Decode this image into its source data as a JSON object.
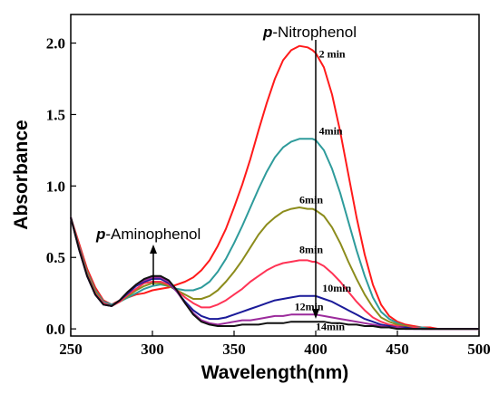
{
  "chart_data": {
    "type": "line",
    "xlabel": "Wavelength(nm)",
    "ylabel": "Absorbance",
    "xlim": [
      250,
      500
    ],
    "ylim": [
      -0.05,
      2.2
    ],
    "xticks": [
      "250",
      "300",
      "350",
      "400",
      "450",
      "500"
    ],
    "yticks": [
      "0.0",
      "0.5",
      "1.0",
      "1.5",
      "2.0"
    ],
    "grid": false,
    "annotations": {
      "nitro_prefix": "p",
      "nitro_rest": "-Nitrophenol",
      "amino_prefix": "p",
      "amino_rest": "-Aminophenol"
    },
    "series": [
      {
        "name": "2 min",
        "color": "#ff1a1a",
        "x": [
          250,
          255,
          260,
          265,
          270,
          275,
          280,
          285,
          290,
          295,
          300,
          305,
          310,
          315,
          320,
          325,
          330,
          335,
          340,
          345,
          350,
          355,
          360,
          365,
          370,
          375,
          380,
          385,
          390,
          395,
          398,
          400,
          405,
          410,
          415,
          420,
          425,
          430,
          435,
          440,
          445,
          450,
          455,
          460,
          465,
          470,
          475,
          480,
          490,
          500
        ],
        "y": [
          0.78,
          0.6,
          0.42,
          0.29,
          0.2,
          0.17,
          0.2,
          0.22,
          0.24,
          0.25,
          0.27,
          0.28,
          0.29,
          0.31,
          0.33,
          0.36,
          0.41,
          0.48,
          0.58,
          0.7,
          0.85,
          1.01,
          1.19,
          1.39,
          1.58,
          1.75,
          1.88,
          1.95,
          1.98,
          1.97,
          1.95,
          1.93,
          1.83,
          1.64,
          1.38,
          1.08,
          0.78,
          0.52,
          0.31,
          0.17,
          0.09,
          0.05,
          0.03,
          0.02,
          0.01,
          0.01,
          0.0,
          0.0,
          0.0,
          0.0
        ]
      },
      {
        "name": "4min",
        "color": "#2e9b9b",
        "x": [
          250,
          255,
          260,
          265,
          270,
          275,
          280,
          285,
          290,
          295,
          300,
          305,
          310,
          315,
          320,
          325,
          330,
          335,
          340,
          345,
          350,
          355,
          360,
          365,
          370,
          375,
          380,
          385,
          390,
          395,
          398,
          400,
          405,
          410,
          415,
          420,
          425,
          430,
          435,
          440,
          445,
          450,
          455,
          460,
          465,
          470,
          475,
          480,
          490,
          500
        ],
        "y": [
          0.78,
          0.58,
          0.4,
          0.27,
          0.19,
          0.17,
          0.19,
          0.22,
          0.25,
          0.28,
          0.3,
          0.31,
          0.3,
          0.28,
          0.27,
          0.27,
          0.29,
          0.33,
          0.4,
          0.49,
          0.6,
          0.72,
          0.85,
          0.98,
          1.1,
          1.2,
          1.27,
          1.31,
          1.33,
          1.33,
          1.33,
          1.32,
          1.25,
          1.12,
          0.95,
          0.75,
          0.55,
          0.37,
          0.22,
          0.12,
          0.07,
          0.04,
          0.02,
          0.01,
          0.01,
          0.0,
          0.0,
          0.0,
          0.0,
          0.0
        ]
      },
      {
        "name": "6min",
        "color": "#8c8c1c",
        "x": [
          250,
          255,
          260,
          265,
          270,
          275,
          280,
          285,
          290,
          295,
          300,
          305,
          310,
          315,
          320,
          325,
          330,
          335,
          340,
          345,
          350,
          355,
          360,
          365,
          370,
          375,
          380,
          385,
          390,
          395,
          398,
          400,
          405,
          410,
          415,
          420,
          425,
          430,
          435,
          440,
          445,
          450,
          455,
          460,
          465,
          470,
          475,
          480,
          490,
          500
        ],
        "y": [
          0.78,
          0.57,
          0.39,
          0.26,
          0.18,
          0.16,
          0.19,
          0.23,
          0.27,
          0.3,
          0.32,
          0.32,
          0.3,
          0.27,
          0.24,
          0.21,
          0.21,
          0.23,
          0.27,
          0.33,
          0.4,
          0.48,
          0.57,
          0.66,
          0.73,
          0.78,
          0.82,
          0.84,
          0.85,
          0.84,
          0.84,
          0.83,
          0.79,
          0.71,
          0.6,
          0.47,
          0.35,
          0.24,
          0.15,
          0.08,
          0.05,
          0.03,
          0.02,
          0.01,
          0.0,
          0.0,
          0.0,
          0.0,
          0.0,
          0.0
        ]
      },
      {
        "name": "8min",
        "color": "#ff3355",
        "x": [
          250,
          255,
          260,
          265,
          270,
          275,
          280,
          285,
          290,
          295,
          300,
          305,
          310,
          315,
          320,
          325,
          330,
          335,
          340,
          345,
          350,
          355,
          360,
          365,
          370,
          375,
          380,
          385,
          390,
          395,
          398,
          400,
          405,
          410,
          415,
          420,
          425,
          430,
          435,
          440,
          445,
          450,
          455,
          460,
          465,
          470,
          475,
          480,
          490,
          500
        ],
        "y": [
          0.78,
          0.57,
          0.38,
          0.25,
          0.18,
          0.16,
          0.19,
          0.24,
          0.28,
          0.32,
          0.33,
          0.33,
          0.31,
          0.27,
          0.22,
          0.18,
          0.15,
          0.15,
          0.17,
          0.2,
          0.24,
          0.28,
          0.33,
          0.37,
          0.41,
          0.44,
          0.46,
          0.47,
          0.48,
          0.48,
          0.47,
          0.47,
          0.44,
          0.39,
          0.33,
          0.26,
          0.19,
          0.13,
          0.08,
          0.05,
          0.03,
          0.02,
          0.01,
          0.01,
          0.0,
          0.0,
          0.0,
          0.0,
          0.0,
          0.0
        ]
      },
      {
        "name": "10min",
        "color": "#1a1a99",
        "x": [
          250,
          255,
          260,
          265,
          270,
          275,
          280,
          285,
          290,
          295,
          300,
          305,
          310,
          315,
          320,
          325,
          330,
          335,
          340,
          345,
          350,
          355,
          360,
          365,
          370,
          375,
          380,
          385,
          390,
          395,
          398,
          400,
          405,
          410,
          415,
          420,
          425,
          430,
          435,
          440,
          445,
          450,
          455,
          460,
          465,
          470,
          475,
          480,
          490,
          500
        ],
        "y": [
          0.78,
          0.56,
          0.37,
          0.24,
          0.17,
          0.16,
          0.2,
          0.25,
          0.3,
          0.33,
          0.35,
          0.35,
          0.32,
          0.26,
          0.19,
          0.13,
          0.09,
          0.07,
          0.07,
          0.08,
          0.1,
          0.12,
          0.14,
          0.16,
          0.18,
          0.2,
          0.21,
          0.22,
          0.23,
          0.23,
          0.23,
          0.23,
          0.21,
          0.19,
          0.16,
          0.13,
          0.1,
          0.07,
          0.05,
          0.03,
          0.02,
          0.01,
          0.01,
          0.0,
          0.0,
          0.0,
          0.0,
          0.0,
          0.0,
          0.0
        ]
      },
      {
        "name": "12min",
        "color": "#9b2a9b",
        "x": [
          250,
          255,
          260,
          265,
          270,
          275,
          280,
          285,
          290,
          295,
          300,
          305,
          310,
          315,
          320,
          325,
          330,
          335,
          340,
          345,
          350,
          355,
          360,
          365,
          370,
          375,
          380,
          385,
          390,
          395,
          398,
          400,
          405,
          410,
          415,
          420,
          425,
          430,
          435,
          440,
          445,
          450,
          455,
          460,
          465,
          470,
          475,
          480,
          490,
          500
        ],
        "y": [
          0.78,
          0.56,
          0.37,
          0.24,
          0.17,
          0.16,
          0.2,
          0.26,
          0.31,
          0.34,
          0.36,
          0.36,
          0.33,
          0.26,
          0.18,
          0.11,
          0.06,
          0.04,
          0.03,
          0.04,
          0.05,
          0.06,
          0.06,
          0.07,
          0.08,
          0.09,
          0.09,
          0.1,
          0.1,
          0.1,
          0.1,
          0.1,
          0.09,
          0.08,
          0.07,
          0.06,
          0.05,
          0.04,
          0.03,
          0.02,
          0.01,
          0.01,
          0.0,
          0.0,
          0.0,
          0.0,
          0.0,
          0.0,
          0.0,
          0.0
        ]
      },
      {
        "name": "14min",
        "color": "#111111",
        "x": [
          250,
          255,
          260,
          265,
          270,
          275,
          280,
          285,
          290,
          295,
          300,
          305,
          310,
          315,
          320,
          325,
          330,
          335,
          340,
          345,
          350,
          355,
          360,
          365,
          370,
          375,
          380,
          385,
          390,
          395,
          398,
          400,
          405,
          410,
          415,
          420,
          425,
          430,
          435,
          440,
          445,
          450,
          455,
          460,
          465,
          470,
          475,
          480,
          490,
          500
        ],
        "y": [
          0.78,
          0.56,
          0.37,
          0.24,
          0.17,
          0.16,
          0.2,
          0.26,
          0.31,
          0.35,
          0.37,
          0.37,
          0.34,
          0.27,
          0.18,
          0.1,
          0.05,
          0.03,
          0.02,
          0.02,
          0.02,
          0.03,
          0.03,
          0.03,
          0.04,
          0.04,
          0.04,
          0.05,
          0.05,
          0.05,
          0.05,
          0.05,
          0.05,
          0.04,
          0.04,
          0.03,
          0.03,
          0.02,
          0.02,
          0.01,
          0.01,
          0.0,
          0.0,
          0.0,
          0.0,
          0.0,
          0.0,
          0.0,
          0.0,
          0.0
        ]
      }
    ],
    "time_labels": [
      {
        "text": "2 min",
        "x": 402,
        "y": 1.9
      },
      {
        "text": "4min",
        "x": 402,
        "y": 1.36
      },
      {
        "text": "6min",
        "x": 390,
        "y": 0.88
      },
      {
        "text": "8min",
        "x": 390,
        "y": 0.53
      },
      {
        "text": "10min",
        "x": 404,
        "y": 0.26
      },
      {
        "text": "12min",
        "x": 387,
        "y": 0.13
      },
      {
        "text": "14min",
        "x": 400,
        "y": -0.01
      }
    ]
  }
}
